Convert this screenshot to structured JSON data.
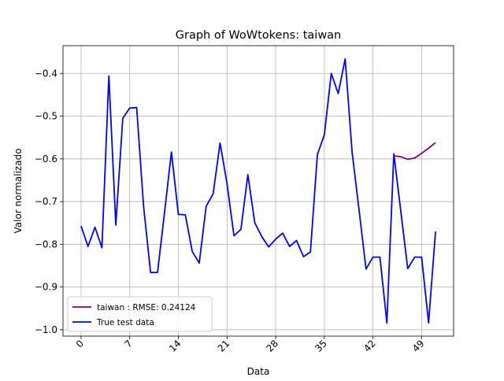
{
  "chart_data": {
    "type": "line",
    "title": "Graph of WoWtokens: taiwan",
    "xlabel": "Data",
    "ylabel": "Valor normalizado",
    "xlim": [
      -2.6,
      53.6
    ],
    "ylim": [
      -1.015,
      -0.335
    ],
    "x_ticks": [
      0,
      7,
      14,
      21,
      28,
      35,
      42,
      49
    ],
    "y_ticks": [
      -1.0,
      -0.9,
      -0.8,
      -0.7,
      -0.6,
      -0.5,
      -0.4
    ],
    "grid": true,
    "legend_position": "lower-left",
    "series": [
      {
        "name": "taiwan : RMSE: 0.24124",
        "color": "#800080",
        "x": [
          45,
          46,
          47,
          48,
          49,
          50,
          51
        ],
        "y": [
          -0.593,
          -0.595,
          -0.601,
          -0.598,
          -0.587,
          -0.575,
          -0.562
        ]
      },
      {
        "name": "True test data",
        "color": "#0000ff",
        "x": [
          0,
          1,
          2,
          3,
          4,
          5,
          6,
          7,
          8,
          9,
          10,
          11,
          12,
          13,
          14,
          15,
          16,
          17,
          18,
          19,
          20,
          21,
          22,
          23,
          24,
          25,
          26,
          27,
          28,
          29,
          30,
          31,
          32,
          33,
          34,
          35,
          36,
          37,
          38,
          39,
          40,
          41,
          42,
          43,
          44,
          45,
          46,
          47,
          48,
          49,
          50,
          51
        ],
        "y": [
          -0.757,
          -0.805,
          -0.76,
          -0.808,
          -0.406,
          -0.755,
          -0.505,
          -0.481,
          -0.48,
          -0.712,
          -0.866,
          -0.866,
          -0.727,
          -0.584,
          -0.73,
          -0.731,
          -0.817,
          -0.844,
          -0.711,
          -0.682,
          -0.563,
          -0.658,
          -0.78,
          -0.765,
          -0.637,
          -0.75,
          -0.782,
          -0.806,
          -0.788,
          -0.774,
          -0.805,
          -0.791,
          -0.829,
          -0.818,
          -0.59,
          -0.544,
          -0.4,
          -0.447,
          -0.366,
          -0.585,
          -0.72,
          -0.858,
          -0.83,
          -0.83,
          -0.984,
          -0.588,
          -0.722,
          -0.857,
          -0.83,
          -0.83,
          -0.984,
          -0.77
        ]
      }
    ]
  }
}
